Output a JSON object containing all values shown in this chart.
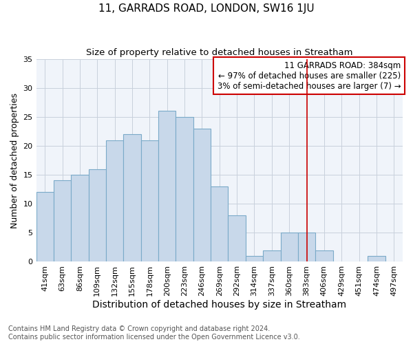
{
  "title": "11, GARRADS ROAD, LONDON, SW16 1JU",
  "subtitle": "Size of property relative to detached houses in Streatham",
  "xlabel": "Distribution of detached houses by size in Streatham",
  "ylabel": "Number of detached properties",
  "categories": [
    "41sqm",
    "63sqm",
    "86sqm",
    "109sqm",
    "132sqm",
    "155sqm",
    "178sqm",
    "200sqm",
    "223sqm",
    "246sqm",
    "269sqm",
    "292sqm",
    "314sqm",
    "337sqm",
    "360sqm",
    "383sqm",
    "406sqm",
    "429sqm",
    "451sqm",
    "474sqm",
    "497sqm"
  ],
  "values": [
    12,
    14,
    15,
    16,
    21,
    22,
    21,
    26,
    25,
    23,
    13,
    8,
    1,
    2,
    5,
    5,
    2,
    0,
    0,
    1,
    0
  ],
  "bar_color": "#c8d8ea",
  "bar_edge_color": "#7aaac8",
  "vline_x": 15,
  "vline_color": "#cc0000",
  "annotation_text": "11 GARRADS ROAD: 384sqm\n← 97% of detached houses are smaller (225)\n3% of semi-detached houses are larger (7) →",
  "annotation_box_color": "#cc0000",
  "ylim": [
    0,
    35
  ],
  "yticks": [
    0,
    5,
    10,
    15,
    20,
    25,
    30,
    35
  ],
  "footer": "Contains HM Land Registry data © Crown copyright and database right 2024.\nContains public sector information licensed under the Open Government Licence v3.0.",
  "background_color": "#f0f4fa",
  "grid_color": "#c8d0dc",
  "title_fontsize": 11,
  "subtitle_fontsize": 9.5,
  "ylabel_fontsize": 9,
  "xlabel_fontsize": 10,
  "tick_fontsize": 8,
  "annotation_fontsize": 8.5,
  "footer_fontsize": 7
}
